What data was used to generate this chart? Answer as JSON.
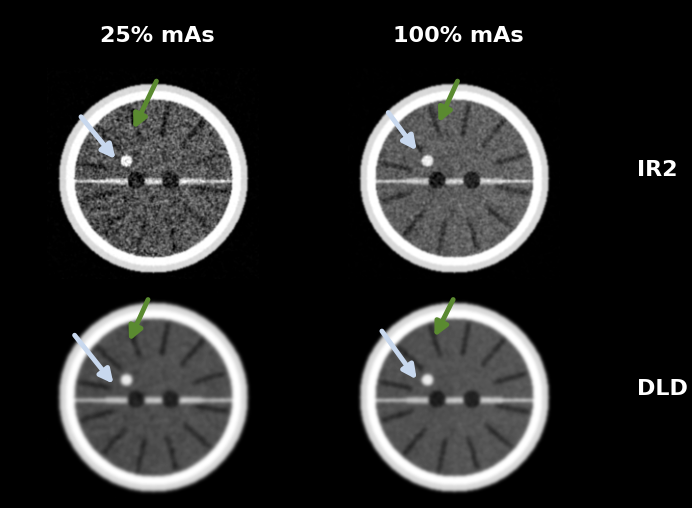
{
  "background_color": "#000000",
  "figure_width": 6.92,
  "figure_height": 5.08,
  "dpi": 100,
  "col_labels": [
    "25% mAs",
    "100% mAs"
  ],
  "row_labels": [
    "IR2",
    "DLD"
  ],
  "label_color": "#ffffff",
  "col_label_fontsize": 16,
  "row_label_fontsize": 16,
  "col_label_fontweight": "bold",
  "row_label_fontweight": "bold",
  "border_color": "#888888",
  "border_linewidth": 1.5,
  "arrow_green_color": "#4a7c2f",
  "arrow_white_color": "#c8d8e8",
  "grid_rows": 2,
  "grid_cols": 2
}
